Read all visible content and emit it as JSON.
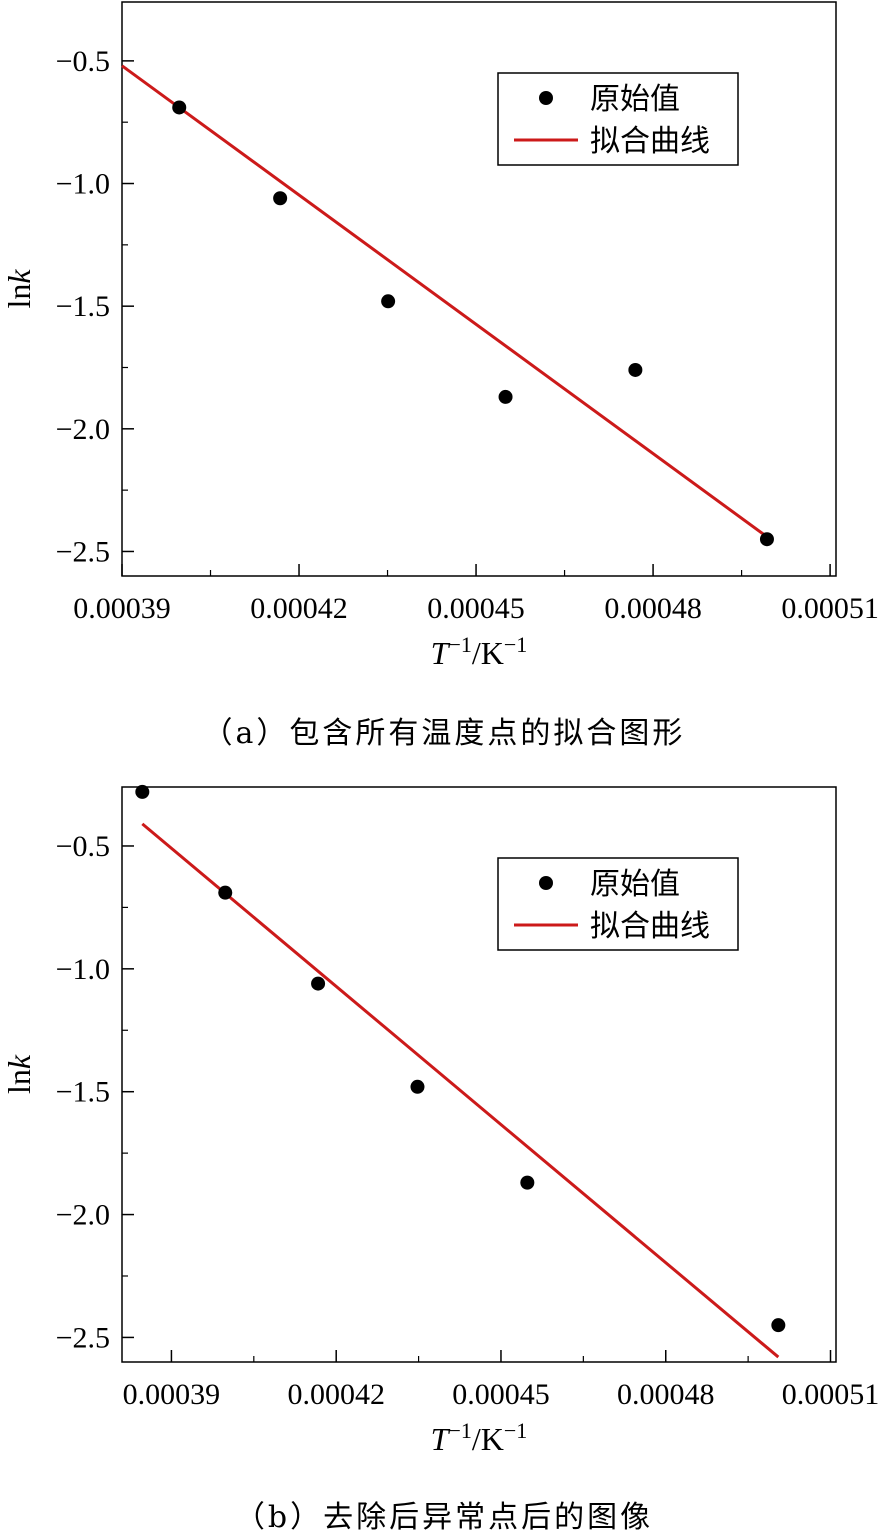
{
  "chart_data": [
    {
      "type": "scatter",
      "caption": "（a）包含所有温度点的拟合图形",
      "xlabel": "T^{-1}/K^{-1}",
      "ylabel": "lnk",
      "xlim": [
        0.00039,
        0.000511
      ],
      "ylim": [
        -2.6,
        -0.26
      ],
      "xticks": [
        0.00039,
        0.00042,
        0.00045,
        0.00048,
        0.00051
      ],
      "xtick_labels": [
        "0.00039",
        "0.00042",
        "0.00045",
        "0.00048",
        "0.00051"
      ],
      "yticks": [
        -0.5,
        -1.0,
        -1.5,
        -2.0,
        -2.5
      ],
      "ytick_labels": [
        "−0.5",
        "−1.0",
        "−1.5",
        "−2.0",
        "−2.5"
      ],
      "series": [
        {
          "name": "原始值",
          "kind": "points",
          "x": [
            0.0003997,
            0.0004168,
            0.0004351,
            0.000455,
            0.000477,
            0.0004993
          ],
          "y": [
            -0.69,
            -1.06,
            -1.48,
            -1.87,
            -1.76,
            -2.45
          ]
        },
        {
          "name": "拟合曲线",
          "kind": "line",
          "x": [
            0.00039,
            0.0004993
          ],
          "y": [
            -0.52,
            -2.44
          ]
        }
      ],
      "grid": false,
      "legend_position": "top-right",
      "colors": {
        "points": "#000000",
        "line": "#cc1a1a"
      }
    },
    {
      "type": "scatter",
      "caption": "（b）去除后异常点后的图像",
      "xlabel": "T^{-1}/K^{-1}",
      "ylabel": "lnk",
      "xlim": [
        0.000381,
        0.000511
      ],
      "ylim": [
        -2.6,
        -0.26
      ],
      "xticks": [
        0.00039,
        0.00042,
        0.00045,
        0.00048,
        0.00051
      ],
      "xtick_labels": [
        "0.00039",
        "0.00042",
        "0.00045",
        "0.00048",
        "0.00051"
      ],
      "yticks": [
        -0.5,
        -1.0,
        -1.5,
        -2.0,
        -2.5
      ],
      "ytick_labels": [
        "−0.5",
        "−1.0",
        "−1.5",
        "−2.0",
        "−2.5"
      ],
      "series": [
        {
          "name": "原始值",
          "kind": "points",
          "x": [
            0.0003847,
            0.0003998,
            0.0004167,
            0.0004348,
            0.0004548,
            0.0005005
          ],
          "y": [
            -0.28,
            -0.69,
            -1.06,
            -1.48,
            -1.87,
            -2.45
          ]
        },
        {
          "name": "拟合曲线",
          "kind": "line",
          "x": [
            0.0003847,
            0.0005005
          ],
          "y": [
            -0.41,
            -2.58
          ]
        }
      ],
      "grid": false,
      "legend_position": "top-right",
      "colors": {
        "points": "#000000",
        "line": "#cc1a1a"
      }
    }
  ]
}
